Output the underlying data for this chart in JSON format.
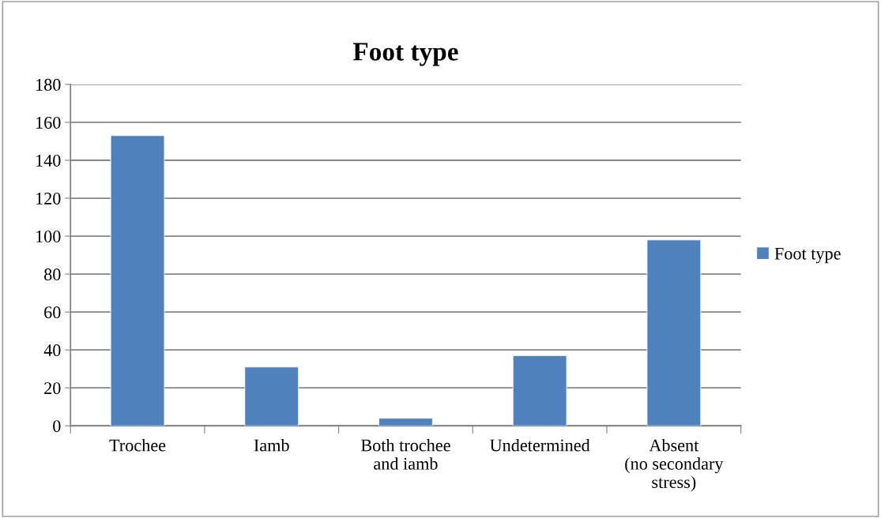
{
  "chart_data": {
    "type": "bar",
    "title": "Foot type",
    "categories": [
      "Trochee",
      "Iamb",
      "Both trochee\nand iamb",
      "Undetermined",
      "Absent\n(no secondary\nstress)"
    ],
    "series": [
      {
        "name": "Foot type",
        "color": "#4f81bd",
        "values": [
          153,
          31,
          4,
          37,
          98
        ]
      }
    ],
    "ylim": [
      0,
      180
    ],
    "yticks": [
      0,
      20,
      40,
      60,
      80,
      100,
      120,
      140,
      160,
      180
    ],
    "grid": "y",
    "legend": "right"
  }
}
